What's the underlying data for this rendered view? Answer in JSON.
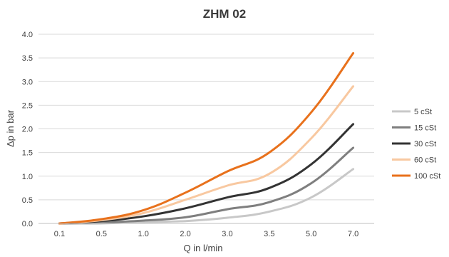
{
  "chart_data": {
    "type": "line",
    "title": "ZHM 02",
    "xlabel": "Q in l/min",
    "ylabel": "Δp in bar",
    "categories": [
      "0.1",
      "0.5",
      "1.0",
      "2.0",
      "3.0",
      "3.5",
      "5.0",
      "7.0"
    ],
    "ylim": [
      0,
      4.0
    ],
    "yticks": [
      "0.0",
      "0.5",
      "1.0",
      "1.5",
      "2.0",
      "2.5",
      "3.0",
      "3.5",
      "4.0"
    ],
    "grid": "horizontal",
    "legend": "right",
    "series": [
      {
        "name": "5 cSt",
        "color": "#c8c8c8",
        "values": [
          0.0,
          0.0,
          0.03,
          0.05,
          0.12,
          0.25,
          0.55,
          1.15
        ]
      },
      {
        "name": "15 cSt",
        "color": "#7f7f7f",
        "values": [
          0.0,
          0.02,
          0.06,
          0.13,
          0.3,
          0.45,
          0.85,
          1.6
        ]
      },
      {
        "name": "30 cSt",
        "color": "#333333",
        "values": [
          0.0,
          0.05,
          0.15,
          0.32,
          0.55,
          0.75,
          1.25,
          2.1
        ]
      },
      {
        "name": "60 cSt",
        "color": "#f8c8a0",
        "values": [
          0.0,
          0.07,
          0.22,
          0.5,
          0.8,
          1.05,
          1.8,
          2.9
        ]
      },
      {
        "name": "100 cSt",
        "color": "#e8711c",
        "values": [
          0.0,
          0.09,
          0.28,
          0.65,
          1.1,
          1.5,
          2.35,
          3.6
        ]
      }
    ]
  }
}
